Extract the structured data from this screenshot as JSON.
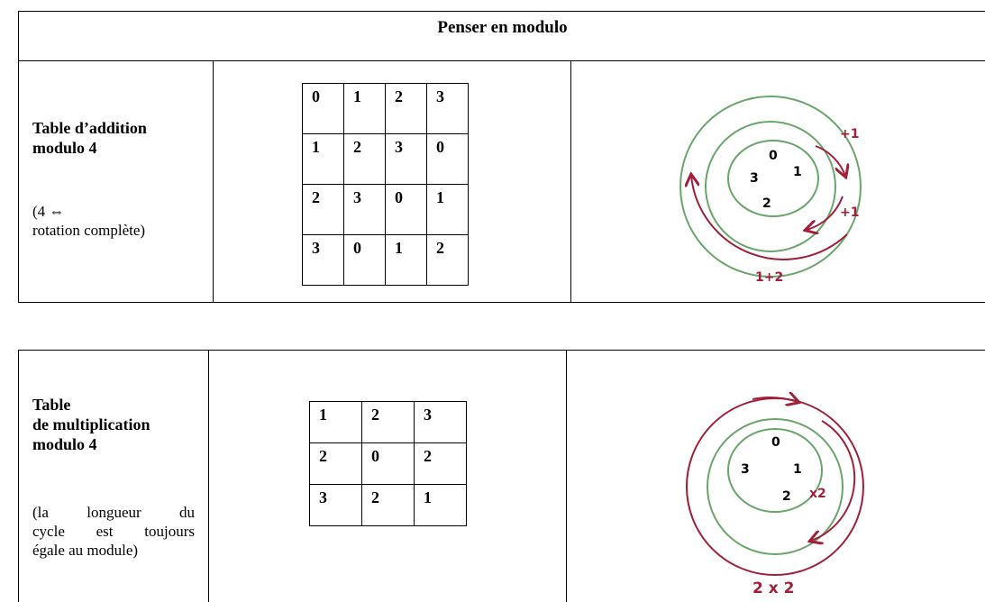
{
  "title": "Penser en modulo",
  "addition": {
    "label": [
      "Table d’addition",
      "modulo 4"
    ],
    "note": [
      "(4 ⇔",
      "rotation complète)"
    ],
    "table": [
      [
        0,
        1,
        2,
        3
      ],
      [
        1,
        2,
        3,
        0
      ],
      [
        2,
        3,
        0,
        1
      ],
      [
        3,
        0,
        1,
        2
      ]
    ],
    "figure": {
      "digits": [
        "0",
        "1",
        "2",
        "3"
      ],
      "steps": [
        "+1",
        "+1"
      ],
      "caption": "1+2"
    }
  },
  "multiplication": {
    "label": [
      "Table",
      "de multiplication",
      "modulo 4"
    ],
    "note": [
      "(la longueur du",
      "cycle est toujours",
      "égale au module)"
    ],
    "table": [
      [
        1,
        2,
        3
      ],
      [
        2,
        0,
        2
      ],
      [
        3,
        2,
        1
      ]
    ],
    "figure": {
      "digits": [
        "0",
        "1",
        "2",
        "3"
      ],
      "steps": [
        "x2"
      ],
      "caption": "2 x 2"
    }
  }
}
